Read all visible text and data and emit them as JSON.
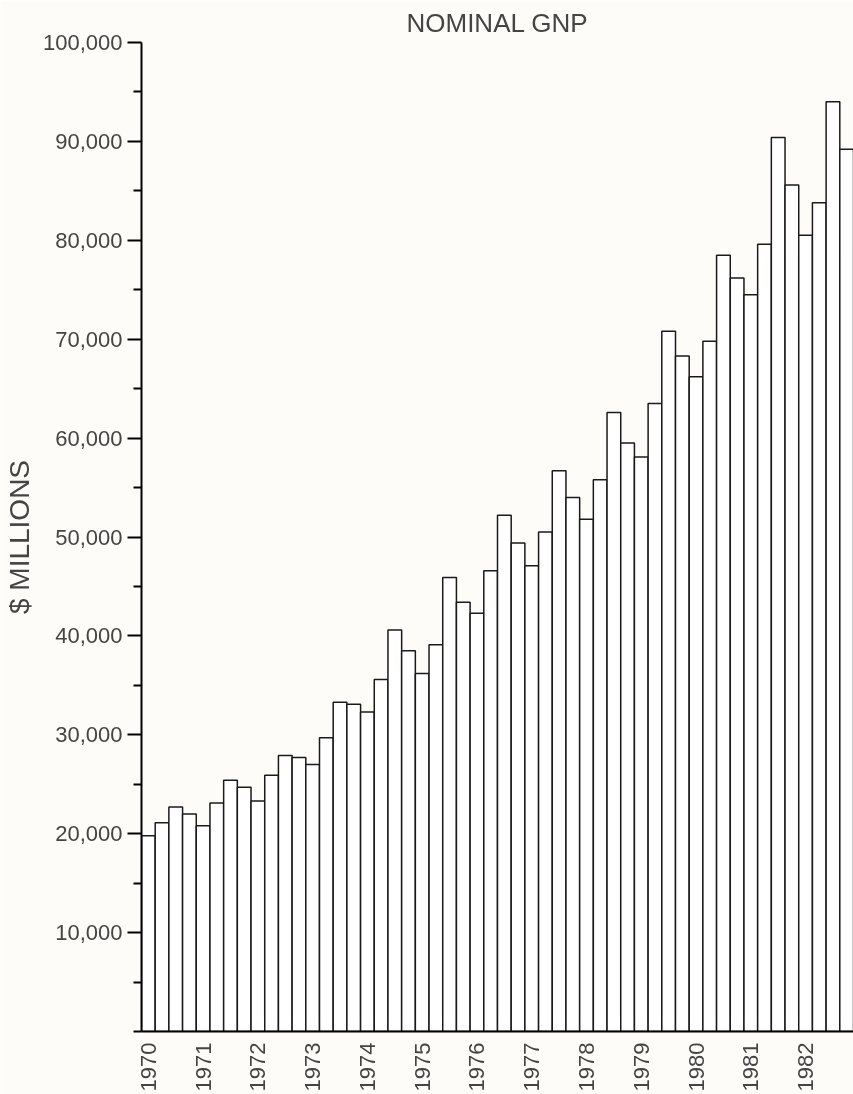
{
  "chart_data": {
    "type": "bar",
    "title": "NOMINAL GNP",
    "ylabel": "$ MILLIONS",
    "categories": [
      "1970",
      null,
      null,
      null,
      "1971",
      null,
      null,
      null,
      "1972",
      null,
      null,
      null,
      "1973",
      null,
      null,
      null,
      "1974",
      null,
      null,
      null,
      "1975",
      null,
      null,
      null,
      "1976",
      null,
      null,
      null,
      "1977",
      null,
      null,
      null,
      "1978",
      null,
      null,
      null,
      "1979",
      null,
      null,
      null,
      "1980",
      null,
      null,
      null,
      "1981",
      null,
      null,
      null,
      "1982",
      null,
      null,
      null
    ],
    "values": [
      19800,
      21100,
      22700,
      22000,
      20800,
      23100,
      25400,
      24700,
      23300,
      25900,
      27900,
      27700,
      27000,
      29700,
      33300,
      33100,
      32300,
      35600,
      40600,
      38500,
      36200,
      39100,
      45900,
      43400,
      42300,
      46600,
      52200,
      49400,
      47100,
      50500,
      56700,
      54000,
      51800,
      55800,
      62600,
      59500,
      58100,
      63500,
      70800,
      68300,
      66200,
      69800,
      78500,
      76200,
      74500,
      79600,
      90400,
      85600,
      80500,
      83800,
      94000,
      89200
    ],
    "color": "#ffffff",
    "ylim": [
      0,
      100000
    ],
    "yticks": [
      {
        "value": 0,
        "label": null
      },
      {
        "value": 5000,
        "label": null
      },
      "10,000",
      {
        "value": 15000,
        "label": null
      },
      {
        "value": 20000,
        "label": "20,000"
      },
      {
        "value": 25000,
        "label": null
      },
      {
        "value": 30000,
        "label": "30,000"
      },
      {
        "value": 35000,
        "label": null
      },
      {
        "value": 40000,
        "label": "40,000"
      },
      {
        "value": 45000,
        "label": null
      },
      {
        "value": 50000,
        "label": "50,000"
      },
      {
        "value": 55000,
        "label": null
      },
      {
        "value": 60000,
        "label": "60,000"
      },
      {
        "value": 65000,
        "label": null
      },
      {
        "value": 70000,
        "label": "70,000"
      },
      {
        "value": 75000,
        "label": null
      },
      {
        "value": 80000,
        "label": "80,000"
      },
      {
        "value": 85000,
        "label": null
      },
      {
        "value": 90000,
        "label": "90,000"
      },
      {
        "value": 95000,
        "label": null
      },
      {
        "value": 100000,
        "label": "100,000"
      }
    ],
    "grid": false
  }
}
